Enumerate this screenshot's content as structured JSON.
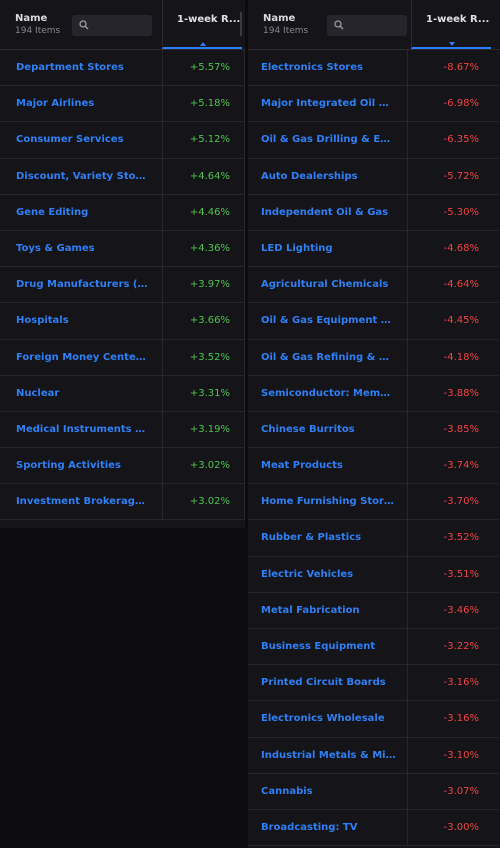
{
  "left_table": {
    "header_name": "Name",
    "item_count": "194 Items",
    "column_label": "1-week R...",
    "sort_direction": "up",
    "rows": [
      {
        "name": "Department Stores",
        "value": "+5.57%"
      },
      {
        "name": "Major Airlines",
        "value": "+5.18%"
      },
      {
        "name": "Consumer Services",
        "value": "+5.12%"
      },
      {
        "name": "Discount, Variety Stores",
        "value": "+4.64%"
      },
      {
        "name": "Gene Editing",
        "value": "+4.46%"
      },
      {
        "name": "Toys & Games",
        "value": "+4.36%"
      },
      {
        "name": "Drug Manufacturers (M...",
        "value": "+3.97%"
      },
      {
        "name": "Hospitals",
        "value": "+3.66%"
      },
      {
        "name": "Foreign Money Center B...",
        "value": "+3.52%"
      },
      {
        "name": "Nuclear",
        "value": "+3.31%"
      },
      {
        "name": "Medical Instruments & ...",
        "value": "+3.19%"
      },
      {
        "name": "Sporting Activities",
        "value": "+3.02%"
      },
      {
        "name": "Investment Brokerage (...",
        "value": "+3.02%"
      }
    ]
  },
  "right_table": {
    "header_name": "Name",
    "item_count": "194 Items",
    "column_label": "1-week R...",
    "sort_direction": "down",
    "rows": [
      {
        "name": "Electronics Stores",
        "value": "-8.67%"
      },
      {
        "name": "Major Integrated Oil & G...",
        "value": "-6.98%"
      },
      {
        "name": "Oil & Gas Drilling & Expl...",
        "value": "-6.35%"
      },
      {
        "name": "Auto Dealerships",
        "value": "-5.72%"
      },
      {
        "name": "Independent Oil & Gas",
        "value": "-5.30%"
      },
      {
        "name": "LED Lighting",
        "value": "-4.68%"
      },
      {
        "name": "Agricultural Chemicals",
        "value": "-4.64%"
      },
      {
        "name": "Oil & Gas Equipment & S...",
        "value": "-4.45%"
      },
      {
        "name": "Oil & Gas Refining & Mar...",
        "value": "-4.18%"
      },
      {
        "name": "Semiconductor: Memor...",
        "value": "-3.88%"
      },
      {
        "name": "Chinese Burritos",
        "value": "-3.85%"
      },
      {
        "name": "Meat Products",
        "value": "-3.74%"
      },
      {
        "name": "Home Furnishing Stores",
        "value": "-3.70%"
      },
      {
        "name": "Rubber & Plastics",
        "value": "-3.52%"
      },
      {
        "name": "Electric Vehicles",
        "value": "-3.51%"
      },
      {
        "name": "Metal Fabrication",
        "value": "-3.46%"
      },
      {
        "name": "Business Equipment",
        "value": "-3.22%"
      },
      {
        "name": "Printed Circuit Boards",
        "value": "-3.16%"
      },
      {
        "name": "Electronics Wholesale",
        "value": "-3.16%"
      },
      {
        "name": "Industrial Metals & Min...",
        "value": "-3.10%"
      },
      {
        "name": "Cannabis",
        "value": "-3.07%"
      },
      {
        "name": "Broadcasting: TV",
        "value": "-3.00%"
      }
    ]
  },
  "icons": {
    "search": "search-icon",
    "sort": "sort-arrow-icon"
  },
  "colors": {
    "background": "#0c0c10",
    "panel": "#141419",
    "link": "#2f7ff5",
    "positive": "#4fc44f",
    "negative": "#ef4444",
    "accent": "#2e7cf6"
  }
}
